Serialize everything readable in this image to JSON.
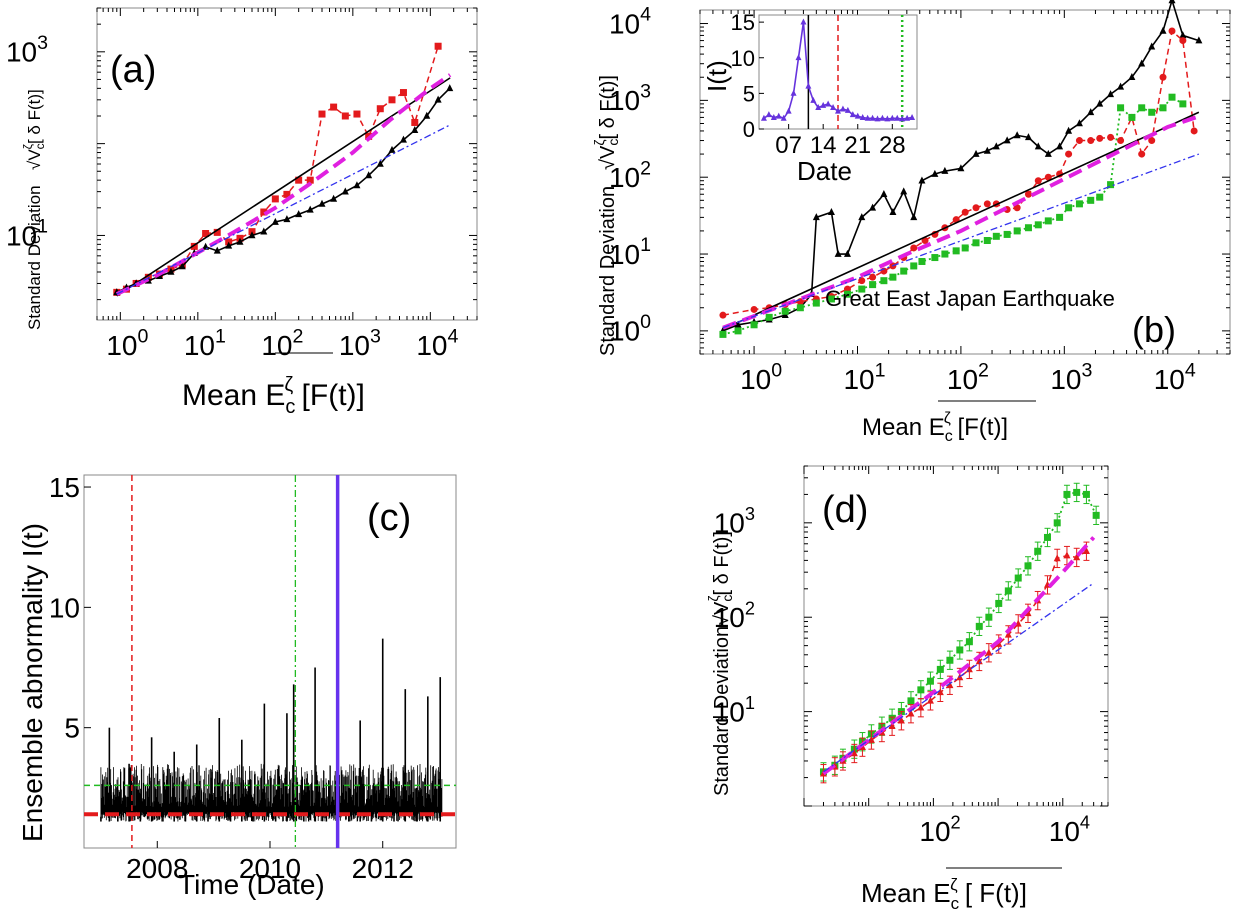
{
  "chart_data": [
    {
      "id": "a",
      "type": "scatter",
      "panel_label": "(a)",
      "xlabel": "Mean E_c^ζ [F(t)]",
      "ylabel": "Standard Deviation √V_c^ζ[ δF(t)]",
      "x_scale": "log",
      "y_scale": "log",
      "xlim": [
        0.5,
        40000
      ],
      "ylim": [
        1.2,
        3000
      ],
      "x_ticks": [
        {
          "v": 1,
          "m": "0"
        },
        {
          "v": 10,
          "m": "1"
        },
        {
          "v": 100,
          "m": "2"
        },
        {
          "v": 1000,
          "m": "3"
        },
        {
          "v": 10000,
          "m": "4"
        }
      ],
      "y_ticks": [
        {
          "v": 10,
          "m": "1"
        },
        {
          "v": 1000,
          "m": "3"
        }
      ],
      "series": [
        {
          "color": "#e31a1c",
          "style": "dashed",
          "marker": "square",
          "x": [
            0.9,
            1.2,
            1.6,
            2.3,
            3.2,
            4.5,
            6.3,
            9,
            12.6,
            17.8,
            25,
            35,
            50,
            71,
            100,
            141,
            200,
            282,
            400,
            565,
            800,
            1130,
            1600,
            2260,
            3200,
            4500,
            6300,
            12600
          ],
          "y": [
            2.4,
            2.6,
            3.0,
            3.5,
            3.8,
            4.3,
            4.8,
            7.6,
            10.5,
            10.8,
            8.5,
            9.3,
            11,
            18,
            25,
            28,
            40,
            40,
            210,
            250,
            200,
            210,
            120,
            240,
            300,
            360,
            170,
            1150
          ]
        },
        {
          "color": "#000000",
          "style": "solid",
          "marker": "triangle",
          "x": [
            0.9,
            1.2,
            1.6,
            2.3,
            3.2,
            4.5,
            6.3,
            9,
            12.6,
            17.8,
            25,
            35,
            50,
            71,
            100,
            141,
            200,
            282,
            400,
            565,
            800,
            1130,
            1600,
            2260,
            3200,
            4500,
            6300,
            9000,
            12600,
            17800
          ],
          "y": [
            2.4,
            2.7,
            3.0,
            3.2,
            3.6,
            4.0,
            4.6,
            6.4,
            7.5,
            6.8,
            7.7,
            8.5,
            10,
            11,
            14,
            15,
            17,
            19,
            22,
            25,
            30,
            35,
            45,
            60,
            85,
            110,
            140,
            200,
            300,
            400
          ]
        },
        {
          "color": "#000000",
          "style": "solid",
          "marker": "none",
          "x": [
            0.9,
            18000
          ],
          "y": [
            2.2,
            520
          ]
        },
        {
          "color": "#e020e0",
          "style": "bigdash",
          "marker": "none",
          "x": [
            0.9,
            3,
            10,
            30,
            100,
            300,
            1000,
            3000,
            10000,
            18000
          ],
          "y": [
            2.3,
            3.7,
            6.5,
            11,
            20,
            38,
            80,
            180,
            400,
            560
          ]
        },
        {
          "color": "#3333ee",
          "style": "dashdot",
          "marker": "none",
          "x": [
            0.9,
            18000
          ],
          "y": [
            2.3,
            160
          ]
        }
      ]
    },
    {
      "id": "b",
      "type": "scatter",
      "panel_label": "(b)",
      "annotation": "Great East Japan Earthquake",
      "xlabel": "Mean E_c^ζ [F(t)]",
      "ylabel": "Standard Deviation √V_c^ζ[ δF(t)]",
      "x_scale": "log",
      "y_scale": "log",
      "xlim": [
        0.3,
        40000
      ],
      "ylim": [
        0.5,
        15000
      ],
      "x_ticks": [
        {
          "v": 1,
          "m": "0"
        },
        {
          "v": 10,
          "m": "1"
        },
        {
          "v": 100,
          "m": "2"
        },
        {
          "v": 1000,
          "m": "3"
        },
        {
          "v": 10000,
          "m": "4"
        }
      ],
      "y_ticks": [
        {
          "v": 1,
          "m": "0"
        },
        {
          "v": 10,
          "m": "1"
        },
        {
          "v": 100,
          "m": "2"
        },
        {
          "v": 1000,
          "m": "3"
        },
        {
          "v": 10000,
          "m": "4"
        }
      ],
      "series": [
        {
          "color": "#000000",
          "style": "solid",
          "marker": "triangle",
          "x": [
            0.5,
            0.7,
            1,
            1.4,
            2,
            2.8,
            3.6,
            4,
            5.6,
            6.5,
            8,
            11,
            14,
            18,
            22,
            28,
            35,
            42,
            56,
            70,
            100,
            140,
            180,
            220,
            280,
            350,
            450,
            560,
            700,
            900,
            1100,
            1400,
            1800,
            2200,
            2800,
            3500,
            4500,
            5600,
            7000,
            9000,
            11000,
            14000,
            20000
          ],
          "y": [
            1,
            1.2,
            1.3,
            1.4,
            1.6,
            2,
            3,
            30,
            35,
            10,
            10,
            30,
            40,
            60,
            35,
            65,
            30,
            90,
            110,
            120,
            130,
            200,
            220,
            250,
            300,
            350,
            330,
            250,
            200,
            250,
            400,
            500,
            700,
            900,
            1200,
            1500,
            2000,
            3000,
            5000,
            8000,
            20000,
            7000,
            6000
          ]
        },
        {
          "color": "#e31a1c",
          "style": "dashed",
          "marker": "circle",
          "x": [
            0.5,
            1,
            1.4,
            2,
            2.8,
            4,
            5.6,
            8,
            11,
            14,
            18,
            22,
            28,
            35,
            45,
            56,
            70,
            90,
            110,
            140,
            180,
            220,
            280,
            350,
            450,
            560,
            700,
            900,
            1100,
            1400,
            1800,
            2200,
            2800,
            3500,
            4500,
            5600,
            7000,
            9000,
            11000,
            14000,
            18000
          ],
          "y": [
            1.6,
            1.9,
            2,
            2.2,
            2.4,
            2.6,
            2.8,
            3.5,
            4.5,
            5,
            6,
            7,
            9,
            12,
            15,
            18,
            22,
            28,
            35,
            40,
            45,
            45,
            38,
            40,
            60,
            90,
            100,
            110,
            200,
            300,
            300,
            320,
            330,
            300,
            600,
            200,
            300,
            2000,
            8000,
            6000,
            400
          ]
        },
        {
          "color": "#22bb22",
          "style": "dotted",
          "marker": "square",
          "x": [
            0.5,
            0.7,
            1,
            1.4,
            2,
            2.8,
            4,
            5.6,
            8,
            11,
            14,
            18,
            22,
            28,
            35,
            42,
            56,
            70,
            90,
            110,
            140,
            180,
            220,
            280,
            350,
            450,
            560,
            700,
            900,
            1100,
            1400,
            1800,
            2200,
            2800,
            3500,
            4500,
            5600,
            7000,
            9000,
            11000,
            14000
          ],
          "y": [
            0.9,
            1,
            1.2,
            1.5,
            1.8,
            2,
            2.3,
            2.6,
            3,
            3.5,
            4,
            4.5,
            5,
            6,
            7,
            8,
            9,
            10,
            11,
            12,
            14,
            15,
            17,
            18,
            20,
            22,
            24,
            27,
            30,
            40,
            45,
            50,
            55,
            80,
            800,
            600,
            800,
            700,
            800,
            1100,
            900
          ]
        },
        {
          "color": "#000000",
          "style": "solid",
          "marker": "none",
          "x": [
            0.5,
            20000
          ],
          "y": [
            1.05,
            700
          ]
        },
        {
          "color": "#e020e0",
          "style": "bigdash",
          "marker": "none",
          "x": [
            0.5,
            3,
            10,
            30,
            100,
            300,
            1000,
            3000,
            10000,
            20000
          ],
          "y": [
            1.1,
            2.7,
            5,
            10,
            20,
            42,
            95,
            200,
            450,
            620
          ]
        },
        {
          "color": "#3333ee",
          "style": "dashdot",
          "marker": "none",
          "x": [
            0.5,
            20000
          ],
          "y": [
            1.1,
            200
          ]
        }
      ]
    },
    {
      "id": "b-inset",
      "type": "line",
      "ylabel": "I(t)",
      "xlabel": "Date",
      "x_ticks": [
        {
          "v": 7,
          "t": "07"
        },
        {
          "v": 14,
          "t": "14"
        },
        {
          "v": 21,
          "t": "21"
        },
        {
          "v": 28,
          "t": "28"
        }
      ],
      "y_ticks": [
        0,
        5,
        10,
        15
      ],
      "xlim": [
        1,
        33
      ],
      "ylim": [
        0,
        16
      ],
      "series": [
        {
          "color": "#6633dd",
          "style": "solid",
          "marker": "triangle",
          "x": [
            2,
            3,
            4,
            5,
            6,
            7,
            8,
            9,
            10,
            11,
            12,
            13,
            14,
            15,
            16,
            17,
            18,
            19,
            20,
            21,
            22,
            23,
            24,
            25,
            26,
            27,
            28,
            29,
            30,
            31,
            32
          ],
          "y": [
            1.5,
            2,
            1.6,
            1.8,
            1.5,
            2.5,
            5,
            10,
            15,
            6,
            4,
            3,
            3.3,
            3.5,
            3,
            2.5,
            2.8,
            2.6,
            2,
            1.8,
            1.6,
            1.5,
            1.5,
            1.4,
            1.5,
            1.4,
            1.5,
            1.5,
            1.4,
            1.5,
            1.6
          ]
        }
      ],
      "vlines": [
        {
          "x": 11,
          "color": "#000000",
          "style": "solid"
        },
        {
          "x": 17,
          "color": "#e31a1c",
          "style": "dashed"
        },
        {
          "x": 30,
          "color": "#22bb22",
          "style": "dotted"
        }
      ]
    },
    {
      "id": "c",
      "type": "line",
      "panel_label": "(c)",
      "xlabel": "Time (Date)",
      "ylabel": "Ensemble abnormality I(t)",
      "xlim": [
        2006.7,
        2013.3
      ],
      "ylim": [
        0,
        15.5
      ],
      "x_ticks": [
        2008,
        2010,
        2012
      ],
      "y_ticks": [
        5,
        10,
        15
      ],
      "series": [
        {
          "name": "I(t)",
          "color": "#000000",
          "style": "solid",
          "x": [
            2007,
            2007.15,
            2007.3,
            2007.5,
            2007.7,
            2007.9,
            2008.1,
            2008.3,
            2008.5,
            2008.7,
            2008.9,
            2009.1,
            2009.3,
            2009.5,
            2009.7,
            2009.9,
            2010.1,
            2010.3,
            2010.42,
            2010.6,
            2010.8,
            2011,
            2011.21,
            2011.4,
            2011.6,
            2011.8,
            2012,
            2012.2,
            2012.4,
            2012.6,
            2012.8,
            2013.02
          ],
          "y": [
            1.3,
            5,
            1.5,
            3.5,
            1.5,
            4.6,
            1.8,
            4,
            1.6,
            4.3,
            1.5,
            5.4,
            2,
            4.5,
            1.6,
            6,
            2,
            5.6,
            6.8,
            2.2,
            7.5,
            2,
            7.8,
            2.5,
            5.3,
            2.2,
            8.7,
            2.5,
            6.6,
            2.5,
            6.3,
            7.1
          ]
        }
      ],
      "band": {
        "low": 1.1,
        "high": 3.5,
        "x0": 2007,
        "x1": 2013.05
      },
      "hlines": [
        {
          "y": 2.6,
          "color": "#22bb22",
          "style": "dashed"
        },
        {
          "y": 1.4,
          "color": "#e31a1c",
          "style": "bigdash"
        }
      ],
      "vlines": [
        {
          "x": 2007.55,
          "color": "#e31a1c",
          "style": "dashed"
        },
        {
          "x": 2010.45,
          "color": "#22bb22",
          "style": "dashdot"
        },
        {
          "x": 2011.2,
          "color": "#6633ee",
          "style": "bold"
        }
      ]
    },
    {
      "id": "d",
      "type": "scatter",
      "panel_label": "(d)",
      "xlabel": "Mean E_c^ζ [ F(t)]",
      "ylabel": "Standard Deviation √V_c^ζ[ δF(t)]",
      "x_scale": "log",
      "y_scale": "log",
      "xlim": [
        1,
        50000
      ],
      "ylim": [
        1,
        4000
      ],
      "x_ticks": [
        {
          "v": 100,
          "m": "2"
        },
        {
          "v": 10000,
          "m": "4"
        }
      ],
      "y_ticks": [
        {
          "v": 10,
          "m": "1"
        },
        {
          "v": 100,
          "m": "2"
        },
        {
          "v": 1000,
          "m": "3"
        }
      ],
      "series": [
        {
          "color": "#22bb22",
          "style": "dotted",
          "marker": "square",
          "errorbars": true,
          "x": [
            2,
            3,
            4,
            6,
            8,
            11,
            16,
            23,
            32,
            45,
            64,
            90,
            128,
            180,
            256,
            360,
            512,
            720,
            1024,
            1440,
            2048,
            2900,
            4100,
            5800,
            8200,
            11600,
            16400,
            23200,
            32800
          ],
          "y": [
            2.3,
            2.7,
            3.2,
            4,
            4.8,
            5.8,
            7,
            8.5,
            10,
            13,
            17,
            21,
            28,
            35,
            45,
            55,
            80,
            100,
            140,
            190,
            260,
            350,
            500,
            700,
            1000,
            2000,
            2100,
            2000,
            1200
          ]
        },
        {
          "color": "#e31a1c",
          "style": "dashed",
          "marker": "triangle",
          "errorbars": true,
          "x": [
            2,
            3,
            4,
            6,
            8,
            11,
            16,
            23,
            32,
            45,
            64,
            90,
            128,
            180,
            256,
            360,
            512,
            720,
            1024,
            1440,
            2048,
            2900,
            4100,
            5800,
            8200,
            11600,
            16400,
            23200
          ],
          "y": [
            2.2,
            2.6,
            3,
            3.6,
            4.2,
            5,
            6,
            7,
            8,
            9.5,
            11,
            13,
            16,
            19,
            23,
            28,
            34,
            42,
            52,
            65,
            85,
            110,
            150,
            220,
            420,
            450,
            430,
            500
          ]
        },
        {
          "color": "#e020e0",
          "style": "bigdash",
          "marker": "none",
          "x": [
            2,
            10,
            100,
            1000,
            10000,
            30000
          ],
          "y": [
            2.2,
            5,
            16,
            55,
            300,
            700
          ]
        },
        {
          "color": "#3333ee",
          "style": "dashdot",
          "marker": "none",
          "x": [
            2,
            30000
          ],
          "y": [
            2.3,
            230
          ]
        }
      ]
    }
  ]
}
